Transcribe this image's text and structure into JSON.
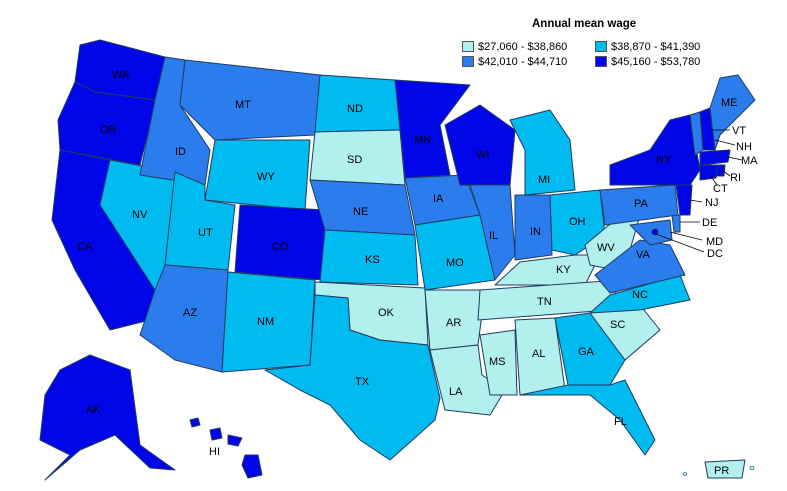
{
  "legend": {
    "title": "Annual mean wage",
    "items": [
      {
        "label": "$27,060 - $38,860",
        "color": "#b2f0ee"
      },
      {
        "label": "$38,870 - $41,390",
        "color": "#00bbf0"
      },
      {
        "label": "$42,010 - $44,710",
        "color": "#2b7dee"
      },
      {
        "label": "$45,160 - $53,780",
        "color": "#0006e8"
      }
    ]
  },
  "states": {
    "WA": "WA",
    "OR": "OR",
    "CA": "CA",
    "NV": "NV",
    "ID": "ID",
    "MT": "MT",
    "WY": "WY",
    "UT": "UT",
    "AZ": "AZ",
    "CO": "CO",
    "NM": "NM",
    "ND": "ND",
    "SD": "SD",
    "NE": "NE",
    "KS": "KS",
    "OK": "OK",
    "TX": "TX",
    "MN": "MN",
    "IA": "IA",
    "MO": "MO",
    "AR": "AR",
    "LA": "LA",
    "WI": "WI",
    "IL": "IL",
    "MS": "MS",
    "MI": "MI",
    "IN": "IN",
    "KY": "KY",
    "TN": "TN",
    "AL": "AL",
    "OH": "OH",
    "WV": "WV",
    "GA": "GA",
    "FL": "FL",
    "SC": "SC",
    "NC": "NC",
    "VA": "VA",
    "PA": "PA",
    "NY": "NY",
    "ME": "ME",
    "VT": "VT",
    "NH": "NH",
    "MA": "MA",
    "RI": "RI",
    "CT": "CT",
    "NJ": "NJ",
    "DE": "DE",
    "MD": "MD",
    "DC": "DC",
    "AK": "AK",
    "HI": "HI",
    "PR": "PR"
  }
}
